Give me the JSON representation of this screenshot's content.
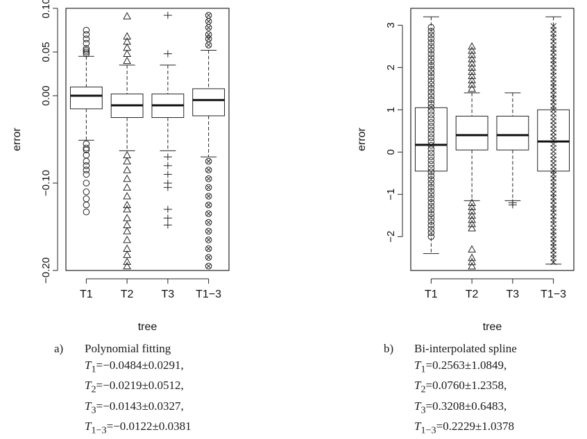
{
  "chart_data": [
    {
      "type": "box",
      "xlabel": "tree",
      "ylabel": "error",
      "categories": [
        "T1",
        "T2",
        "T3",
        "T1−3"
      ],
      "ylim": [
        -0.2,
        0.1
      ],
      "yticks": [
        -0.2,
        -0.1,
        0.0,
        0.05,
        0.1
      ],
      "ytick_labels": [
        "−0.20",
        "−0.10",
        "0.00",
        "0.05",
        "0.10"
      ],
      "markers": [
        "circle",
        "triangle",
        "plus",
        "circle-x"
      ],
      "boxes": [
        {
          "q1": -0.015,
          "median": 0.0,
          "q3": 0.01,
          "whisker_low": -0.051,
          "whisker_high": 0.045
        },
        {
          "q1": -0.025,
          "median": -0.011,
          "q3": 0.002,
          "whisker_low": -0.063,
          "whisker_high": 0.035
        },
        {
          "q1": -0.025,
          "median": -0.011,
          "q3": 0.002,
          "whisker_low": -0.063,
          "whisker_high": 0.035
        },
        {
          "q1": -0.023,
          "median": -0.005,
          "q3": 0.008,
          "whisker_low": -0.07,
          "whisker_high": 0.052
        }
      ],
      "outliers": [
        [
          0.075,
          0.07,
          0.065,
          0.06,
          0.054,
          0.052,
          0.05,
          0.048,
          -0.055,
          -0.06,
          -0.062,
          -0.068,
          -0.075,
          -0.08,
          -0.085,
          -0.09,
          -0.1,
          -0.11,
          -0.118,
          -0.125,
          -0.133
        ],
        [
          0.091,
          0.068,
          0.062,
          0.055,
          0.048,
          0.04,
          -0.068,
          -0.075,
          -0.085,
          -0.095,
          -0.105,
          -0.115,
          -0.125,
          -0.13,
          -0.14,
          -0.148,
          -0.155,
          -0.165,
          -0.175,
          -0.182,
          -0.19,
          -0.195
        ],
        [
          0.092,
          0.048,
          -0.07,
          -0.08,
          -0.09,
          -0.1,
          -0.105,
          -0.13,
          -0.14,
          -0.148
        ],
        [
          0.092,
          0.085,
          0.078,
          0.07,
          0.065,
          0.058,
          -0.075,
          -0.085,
          -0.095,
          -0.105,
          -0.115,
          -0.125,
          -0.135,
          -0.145,
          -0.155,
          -0.165,
          -0.175,
          -0.185,
          -0.195
        ]
      ]
    },
    {
      "type": "box",
      "xlabel": "tree",
      "ylabel": "error",
      "categories": [
        "T1",
        "T2",
        "T3",
        "T1−3"
      ],
      "ylim": [
        -2.8,
        3.4
      ],
      "yticks": [
        -2,
        -1,
        0,
        1,
        2,
        3
      ],
      "ytick_labels": [
        "−2",
        "−1",
        "0",
        "1",
        "2",
        "3"
      ],
      "markers": [
        "circle",
        "triangle",
        "plus",
        "x-mark"
      ],
      "boxes": [
        {
          "q1": -0.45,
          "median": 0.17,
          "q3": 1.05,
          "whisker_low": -2.4,
          "whisker_high": 3.2
        },
        {
          "q1": 0.05,
          "median": 0.4,
          "q3": 0.85,
          "whisker_low": -1.15,
          "whisker_high": 1.4
        },
        {
          "q1": 0.05,
          "median": 0.4,
          "q3": 0.85,
          "whisker_low": -1.15,
          "whisker_high": 1.4
        },
        {
          "q1": -0.45,
          "median": 0.25,
          "q3": 1.0,
          "whisker_low": -2.65,
          "whisker_high": 3.2
        }
      ],
      "outliers": [
        [],
        [
          2.5,
          2.4,
          2.3,
          2.2,
          2.1,
          2.0,
          1.9,
          1.8,
          1.7,
          1.6,
          1.5,
          -1.2,
          -1.3,
          -1.4,
          -1.5,
          -1.6,
          -1.7,
          -1.8,
          -2.3,
          -2.5,
          -2.6,
          -2.7
        ],
        [
          -1.25,
          -1.2
        ],
        []
      ],
      "dense_ranges": [
        {
          "box": 0,
          "from": -2.0,
          "to": 3.0
        },
        {
          "box": 3,
          "from": -2.6,
          "to": 3.0
        }
      ]
    }
  ],
  "captions": [
    {
      "tag": "a)",
      "title": "Polynomial fitting",
      "lines": [
        "T1=−0.0484±0.0291,",
        "T2=−0.0219±0.0512,",
        "T3=−0.0143±0.0327,",
        "T1−3=−0.0122±0.0381"
      ],
      "subs": [
        "1",
        "2",
        "3",
        "1−3"
      ],
      "vals": [
        "=−0.0484±0.0291,",
        "=−0.0219±0.0512,",
        "=−0.0143±0.0327,",
        "=−0.0122±0.0381"
      ]
    },
    {
      "tag": "b)",
      "title": "Bi-interpolated spline",
      "lines": [
        "T1=0.2563±1.0849,",
        "T2=0.0760±1.2358,",
        "T3=0.3208±0.6483,",
        "T1−3=0.2229±1.0378"
      ],
      "subs": [
        "1",
        "2",
        "3",
        "1−3"
      ],
      "vals": [
        "=0.2563±1.0849,",
        "=0.0760±1.2358,",
        "=0.3208±0.6483,",
        "=0.2229±1.0378"
      ]
    }
  ]
}
